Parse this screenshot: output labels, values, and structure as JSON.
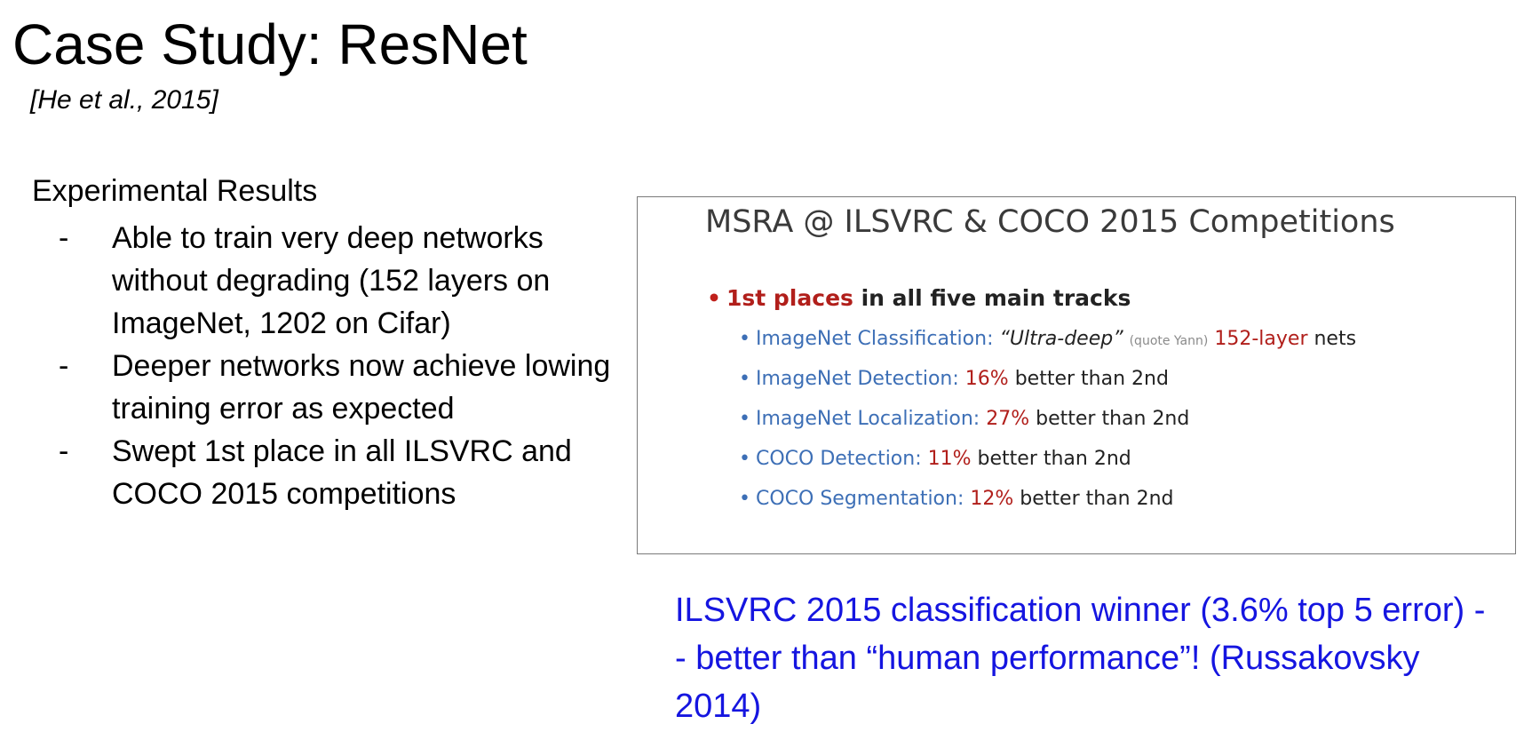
{
  "slide": {
    "title": "Case Study: ResNet",
    "citation": "[He et al., 2015]",
    "section_heading": "Experimental Results",
    "bullet_marker": "-",
    "bullets": [
      "Able to train very deep networks without degrading (152 layers on ImageNet, 1202 on Cifar)",
      "Deeper networks now achieve lowing training error as expected",
      "Swept 1st place in all ILSVRC and COCO 2015 competitions"
    ]
  },
  "figure": {
    "title": "MSRA @ ILSVRC & COCO 2015 Competitions",
    "main_highlight": "1st places",
    "main_rest": " in all five main tracks",
    "tracks": [
      {
        "name": "ImageNet Classification:",
        "quote": "“Ultra-deep”",
        "note": "(quote Yann)",
        "value": "152-layer",
        "rest": "nets"
      },
      {
        "name": "ImageNet Detection:",
        "value": "16%",
        "rest": "better than 2nd"
      },
      {
        "name": "ImageNet Localization:",
        "value": "27%",
        "rest": "better than 2nd"
      },
      {
        "name": "COCO Detection:",
        "value": "11%",
        "rest": "better than 2nd"
      },
      {
        "name": "COCO Segmentation:",
        "value": "12%",
        "rest": "better than 2nd"
      }
    ]
  },
  "caption": "ILSVRC 2015 classification winner (3.6% top 5 error) -- better than “human performance”! (Russakovsky 2014)",
  "colors": {
    "caption": "#1515e0",
    "highlight_red": "#b11f1b",
    "track_blue": "#3d6fb6"
  }
}
